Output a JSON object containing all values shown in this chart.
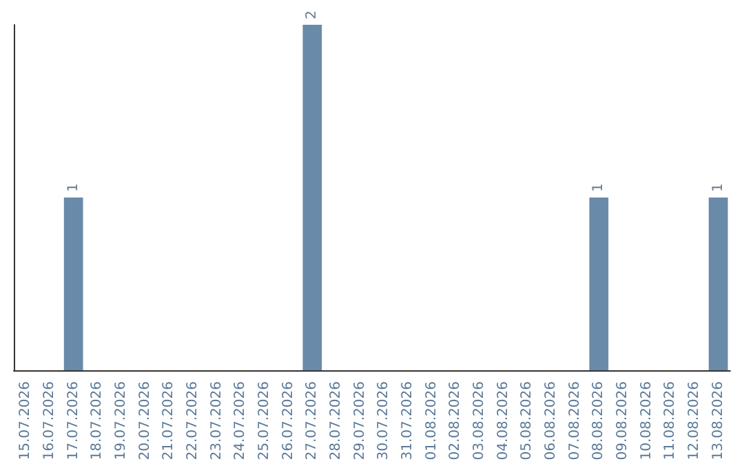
{
  "chart_data": {
    "type": "bar",
    "categories": [
      "15.07.2026",
      "16.07.2026",
      "17.07.2026",
      "18.07.2026",
      "19.07.2026",
      "20.07.2026",
      "21.07.2026",
      "22.07.2026",
      "23.07.2026",
      "24.07.2026",
      "25.07.2026",
      "26.07.2026",
      "27.07.2026",
      "28.07.2026",
      "29.07.2026",
      "30.07.2026",
      "31.07.2026",
      "01.08.2026",
      "02.08.2026",
      "03.08.2026",
      "04.08.2026",
      "05.08.2026",
      "06.08.2026",
      "07.08.2026",
      "08.08.2026",
      "09.08.2026",
      "10.08.2026",
      "11.08.2026",
      "12.08.2026",
      "13.08.2026"
    ],
    "values": [
      0,
      0,
      1,
      0,
      0,
      0,
      0,
      0,
      0,
      0,
      0,
      0,
      2,
      0,
      0,
      0,
      0,
      0,
      0,
      0,
      0,
      0,
      0,
      0,
      1,
      0,
      0,
      0,
      0,
      1
    ],
    "value_labels": [
      null,
      null,
      "1",
      null,
      null,
      null,
      null,
      null,
      null,
      null,
      null,
      null,
      "2",
      null,
      null,
      null,
      null,
      null,
      null,
      null,
      null,
      null,
      null,
      null,
      "1",
      null,
      null,
      null,
      null,
      "1"
    ],
    "color": "#6a8aa9",
    "tick_labels": "x"
  }
}
